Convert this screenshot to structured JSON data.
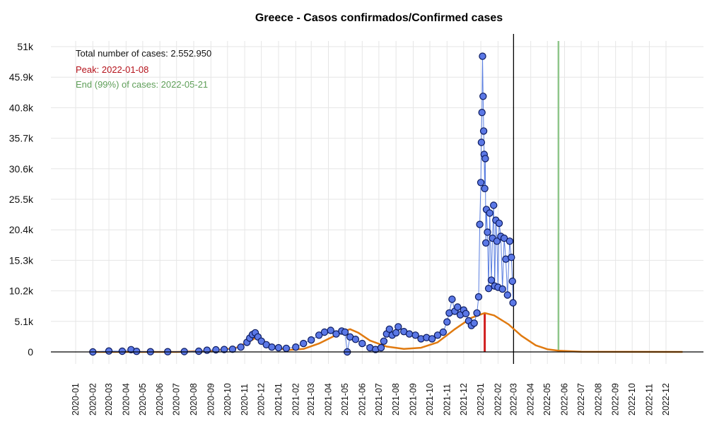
{
  "chart_data": {
    "type": "scatter",
    "title": "Greece - Casos confirmados/Confirmed cases",
    "xlabel": "",
    "ylabel": "",
    "ylim": [
      0,
      51000
    ],
    "y_ticks": [
      {
        "value": 0,
        "label": "0"
      },
      {
        "value": 5100,
        "label": "5.1k"
      },
      {
        "value": 10200,
        "label": "10.2k"
      },
      {
        "value": 15300,
        "label": "15.3k"
      },
      {
        "value": 20400,
        "label": "20.4k"
      },
      {
        "value": 25500,
        "label": "25.5k"
      },
      {
        "value": 30600,
        "label": "30.6k"
      },
      {
        "value": 35700,
        "label": "35.7k"
      },
      {
        "value": 40800,
        "label": "40.8k"
      },
      {
        "value": 45900,
        "label": "45.9k"
      },
      {
        "value": 51000,
        "label": "51k"
      }
    ],
    "x_ticks": [
      "2020-01",
      "2020-02",
      "2020-03",
      "2020-04",
      "2020-05",
      "2020-06",
      "2020-07",
      "2020-08",
      "2020-09",
      "2020-10",
      "2020-11",
      "2020-12",
      "2021-01",
      "2021-02",
      "2021-03",
      "2021-04",
      "2021-05",
      "2021-06",
      "2021-07",
      "2021-08",
      "2021-09",
      "2021-10",
      "2021-11",
      "2021-12",
      "2022-01",
      "2022-02",
      "2022-03",
      "2022-04",
      "2022-05",
      "2022-06",
      "2022-07",
      "2022-08",
      "2022-09",
      "2022-10",
      "2022-11",
      "2022-12"
    ],
    "grid": true,
    "annotations": {
      "total": "Total number of cases: 2.552.950",
      "peak": "Peak: 2022-01-08",
      "end": "End (99%) of cases: 2022-05-21"
    },
    "vlines": {
      "current": "2022-03-01",
      "peak": "2022-01-08",
      "end": "2022-05-21"
    },
    "series": [
      {
        "type": "scatter",
        "points": [
          [
            "2020-02-01",
            0
          ],
          [
            "2020-03-01",
            150
          ],
          [
            "2020-03-25",
            120
          ],
          [
            "2020-04-10",
            380
          ],
          [
            "2020-04-20",
            90
          ],
          [
            "2020-05-15",
            30
          ],
          [
            "2020-06-15",
            40
          ],
          [
            "2020-07-15",
            60
          ],
          [
            "2020-08-10",
            120
          ],
          [
            "2020-08-25",
            280
          ],
          [
            "2020-09-10",
            350
          ],
          [
            "2020-09-25",
            400
          ],
          [
            "2020-10-10",
            450
          ],
          [
            "2020-10-25",
            800
          ],
          [
            "2020-11-05",
            1600
          ],
          [
            "2020-11-10",
            2300
          ],
          [
            "2020-11-15",
            2900
          ],
          [
            "2020-11-20",
            3200
          ],
          [
            "2020-11-25",
            2500
          ],
          [
            "2020-12-01",
            1800
          ],
          [
            "2020-12-10",
            1200
          ],
          [
            "2020-12-20",
            800
          ],
          [
            "2021-01-01",
            700
          ],
          [
            "2021-01-15",
            600
          ],
          [
            "2021-02-01",
            800
          ],
          [
            "2021-02-15",
            1400
          ],
          [
            "2021-03-01",
            2000
          ],
          [
            "2021-03-15",
            2800
          ],
          [
            "2021-03-25",
            3300
          ],
          [
            "2021-04-05",
            3600
          ],
          [
            "2021-04-15",
            3000
          ],
          [
            "2021-04-25",
            3500
          ],
          [
            "2021-05-01",
            3300
          ],
          [
            "2021-05-05",
            0
          ],
          [
            "2021-05-10",
            2500
          ],
          [
            "2021-05-20",
            2100
          ],
          [
            "2021-06-01",
            1400
          ],
          [
            "2021-06-15",
            700
          ],
          [
            "2021-06-25",
            400
          ],
          [
            "2021-07-05",
            700
          ],
          [
            "2021-07-10",
            1800
          ],
          [
            "2021-07-15",
            3000
          ],
          [
            "2021-07-20",
            3800
          ],
          [
            "2021-07-25",
            2800
          ],
          [
            "2021-08-01",
            3200
          ],
          [
            "2021-08-05",
            4200
          ],
          [
            "2021-08-15",
            3400
          ],
          [
            "2021-08-25",
            3000
          ],
          [
            "2021-09-05",
            2800
          ],
          [
            "2021-09-15",
            2200
          ],
          [
            "2021-09-25",
            2400
          ],
          [
            "2021-10-05",
            2200
          ],
          [
            "2021-10-15",
            2800
          ],
          [
            "2021-10-25",
            3300
          ],
          [
            "2021-11-01",
            5000
          ],
          [
            "2021-11-05",
            6500
          ],
          [
            "2021-11-10",
            8800
          ],
          [
            "2021-11-15",
            6800
          ],
          [
            "2021-11-20",
            7500
          ],
          [
            "2021-11-25",
            6200
          ],
          [
            "2021-12-01",
            7000
          ],
          [
            "2021-12-05",
            6400
          ],
          [
            "2021-12-10",
            5200
          ],
          [
            "2021-12-15",
            4400
          ],
          [
            "2021-12-20",
            4800
          ],
          [
            "2021-12-25",
            6500
          ],
          [
            "2021-12-28",
            9200
          ],
          [
            "2021-12-30",
            21300
          ],
          [
            "2022-01-01",
            28300
          ],
          [
            "2022-01-02",
            35000
          ],
          [
            "2022-01-03",
            40000
          ],
          [
            "2022-01-04",
            49400
          ],
          [
            "2022-01-05",
            42700
          ],
          [
            "2022-01-06",
            36900
          ],
          [
            "2022-01-07",
            33000
          ],
          [
            "2022-01-08",
            27300
          ],
          [
            "2022-01-09",
            32300
          ],
          [
            "2022-01-10",
            18200
          ],
          [
            "2022-01-11",
            23800
          ],
          [
            "2022-01-13",
            20000
          ],
          [
            "2022-01-15",
            10600
          ],
          [
            "2022-01-17",
            23200
          ],
          [
            "2022-01-20",
            12000
          ],
          [
            "2022-01-22",
            19000
          ],
          [
            "2022-01-24",
            24500
          ],
          [
            "2022-01-26",
            11000
          ],
          [
            "2022-01-28",
            22000
          ],
          [
            "2022-01-30",
            18500
          ],
          [
            "2022-02-01",
            10800
          ],
          [
            "2022-02-03",
            21500
          ],
          [
            "2022-02-06",
            19300
          ],
          [
            "2022-02-09",
            10500
          ],
          [
            "2022-02-12",
            19000
          ],
          [
            "2022-02-15",
            15500
          ],
          [
            "2022-02-18",
            9500
          ],
          [
            "2022-02-22",
            18500
          ],
          [
            "2022-02-25",
            15800
          ],
          [
            "2022-02-27",
            11800
          ],
          [
            "2022-02-28",
            8200
          ]
        ]
      },
      {
        "type": "curve",
        "points": [
          [
            "2020-02-01",
            0
          ],
          [
            "2020-07-01",
            0
          ],
          [
            "2020-09-01",
            200
          ],
          [
            "2020-10-15",
            600
          ],
          [
            "2020-11-10",
            1800
          ],
          [
            "2020-11-20",
            2300
          ],
          [
            "2020-12-01",
            2000
          ],
          [
            "2020-12-20",
            1000
          ],
          [
            "2021-01-15",
            300
          ],
          [
            "2021-02-15",
            500
          ],
          [
            "2021-03-15",
            1400
          ],
          [
            "2021-04-10",
            2600
          ],
          [
            "2021-05-01",
            3500
          ],
          [
            "2021-05-10",
            3800
          ],
          [
            "2021-05-25",
            3200
          ],
          [
            "2021-06-15",
            1900
          ],
          [
            "2021-07-15",
            900
          ],
          [
            "2021-08-15",
            500
          ],
          [
            "2021-09-15",
            700
          ],
          [
            "2021-10-15",
            1600
          ],
          [
            "2021-11-15",
            3800
          ],
          [
            "2021-12-15",
            5700
          ],
          [
            "2022-01-08",
            6500
          ],
          [
            "2022-01-25",
            6100
          ],
          [
            "2022-02-20",
            4600
          ],
          [
            "2022-03-15",
            2700
          ],
          [
            "2022-04-10",
            1100
          ],
          [
            "2022-05-01",
            450
          ],
          [
            "2022-05-21",
            200
          ],
          [
            "2022-07-01",
            30
          ],
          [
            "2022-12-31",
            0
          ]
        ]
      }
    ]
  }
}
